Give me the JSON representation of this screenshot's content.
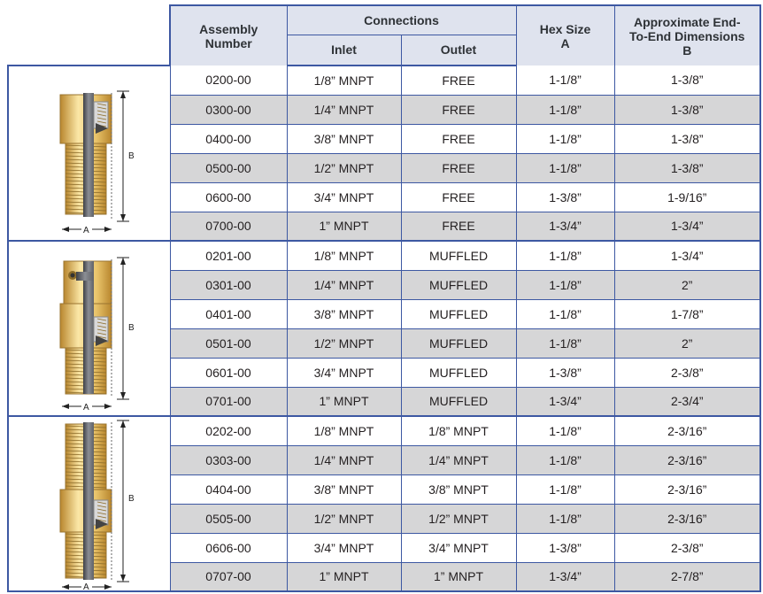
{
  "headers": {
    "assembly": "Assembly Number",
    "connections": "Connections",
    "inlet": "Inlet",
    "outlet": "Outlet",
    "hex_line1": "Hex Size",
    "hex_line2": "A",
    "dims_line1": "Approximate End-",
    "dims_line2": "To-End Dimensions",
    "dims_line3": "B"
  },
  "diagram_labels": {
    "a": "A",
    "b": "B"
  },
  "groups": [
    {
      "name": "free",
      "rows": [
        {
          "assembly": "0200-00",
          "inlet": "1/8” MNPT",
          "outlet": "FREE",
          "hex": "1-1/8”",
          "dim": "1-3/8”"
        },
        {
          "assembly": "0300-00",
          "inlet": "1/4” MNPT",
          "outlet": "FREE",
          "hex": "1-1/8”",
          "dim": "1-3/8”"
        },
        {
          "assembly": "0400-00",
          "inlet": "3/8” MNPT",
          "outlet": "FREE",
          "hex": "1-1/8”",
          "dim": "1-3/8”"
        },
        {
          "assembly": "0500-00",
          "inlet": "1/2” MNPT",
          "outlet": "FREE",
          "hex": "1-1/8”",
          "dim": "1-3/8”"
        },
        {
          "assembly": "0600-00",
          "inlet": "3/4” MNPT",
          "outlet": "FREE",
          "hex": "1-3/8”",
          "dim": "1-9/16”"
        },
        {
          "assembly": "0700-00",
          "inlet": "1” MNPT",
          "outlet": "FREE",
          "hex": "1-3/4”",
          "dim": "1-3/4”"
        }
      ]
    },
    {
      "name": "muffled",
      "rows": [
        {
          "assembly": "0201-00",
          "inlet": "1/8” MNPT",
          "outlet": "MUFFLED",
          "hex": "1-1/8”",
          "dim": "1-3/4”"
        },
        {
          "assembly": "0301-00",
          "inlet": "1/4” MNPT",
          "outlet": "MUFFLED",
          "hex": "1-1/8”",
          "dim": "2”"
        },
        {
          "assembly": "0401-00",
          "inlet": "3/8” MNPT",
          "outlet": "MUFFLED",
          "hex": "1-1/8”",
          "dim": "1-7/8”"
        },
        {
          "assembly": "0501-00",
          "inlet": "1/2” MNPT",
          "outlet": "MUFFLED",
          "hex": "1-1/8”",
          "dim": "2”"
        },
        {
          "assembly": "0601-00",
          "inlet": "3/4” MNPT",
          "outlet": "MUFFLED",
          "hex": "1-3/8”",
          "dim": "2-3/8”"
        },
        {
          "assembly": "0701-00",
          "inlet": "1” MNPT",
          "outlet": "MUFFLED",
          "hex": "1-3/4”",
          "dim": "2-3/4”"
        }
      ]
    },
    {
      "name": "threaded",
      "rows": [
        {
          "assembly": "0202-00",
          "inlet": "1/8” MNPT",
          "outlet": "1/8” MNPT",
          "hex": "1-1/8”",
          "dim": "2-3/16”"
        },
        {
          "assembly": "0303-00",
          "inlet": "1/4” MNPT",
          "outlet": "1/4” MNPT",
          "hex": "1-1/8”",
          "dim": "2-3/16”"
        },
        {
          "assembly": "0404-00",
          "inlet": "3/8” MNPT",
          "outlet": "3/8” MNPT",
          "hex": "1-1/8”",
          "dim": "2-3/16”"
        },
        {
          "assembly": "0505-00",
          "inlet": "1/2” MNPT",
          "outlet": "1/2” MNPT",
          "hex": "1-1/8”",
          "dim": "2-3/16”"
        },
        {
          "assembly": "0606-00",
          "inlet": "3/4” MNPT",
          "outlet": "3/4” MNPT",
          "hex": "1-3/8”",
          "dim": "2-3/8”"
        },
        {
          "assembly": "0707-00",
          "inlet": "1” MNPT",
          "outlet": "1” MNPT",
          "hex": "1-3/4”",
          "dim": "2-7/8”"
        }
      ]
    }
  ],
  "colors": {
    "border": "#3d58a2",
    "header_bg": "#dfe3ee",
    "alt_row_bg": "#d6d6d7",
    "brass": "#e8c36a",
    "steel": "#5f6268"
  },
  "icons": [
    "valve-free-diagram",
    "valve-muffled-diagram",
    "valve-threaded-diagram"
  ]
}
